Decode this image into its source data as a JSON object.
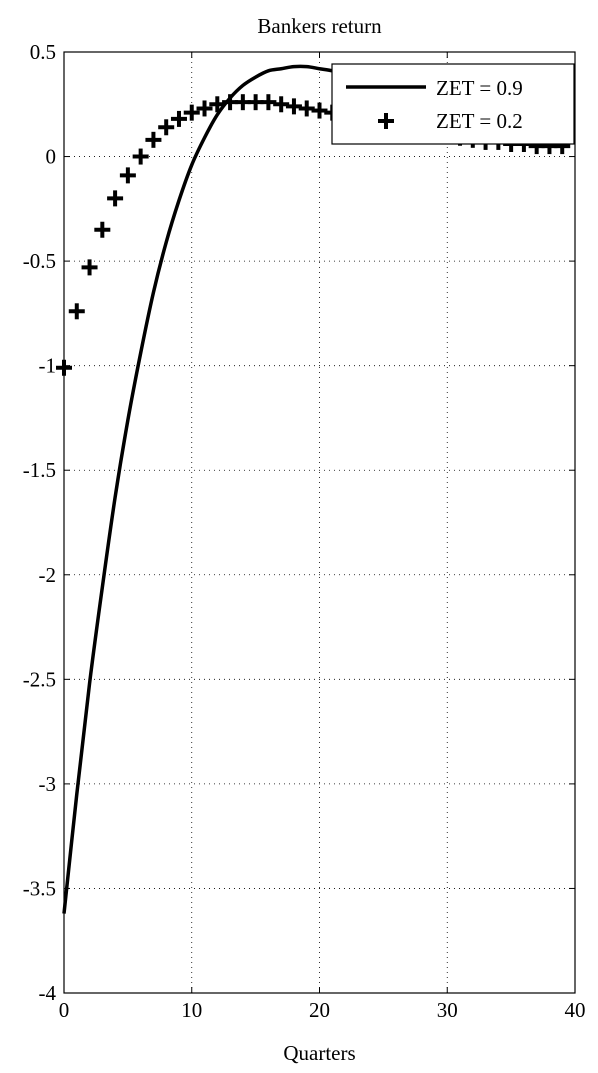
{
  "chart_data": {
    "type": "line",
    "title": "Bankers return",
    "xlabel": "Quarters",
    "ylabel": "",
    "xlim": [
      0,
      40
    ],
    "ylim": [
      -4,
      0.5
    ],
    "xticks": [
      0,
      10,
      20,
      30,
      40
    ],
    "xtick_labels": [
      "0",
      "10",
      "20",
      "30",
      "40"
    ],
    "yticks": [
      0.5,
      0,
      -0.5,
      -1,
      -1.5,
      -2,
      -2.5,
      -3,
      -3.5,
      -4
    ],
    "ytick_labels": [
      "0.5",
      "0",
      "-0.5",
      "-1",
      "-1.5",
      "-2",
      "-2.5",
      "-3",
      "-3.5",
      "-4"
    ],
    "grid": true,
    "grid_style": "dotted",
    "legend_position": "top-right",
    "series": [
      {
        "name": "ZET = 0.9",
        "style": "solid-line",
        "color": "#000000",
        "x": [
          0,
          1,
          2,
          3,
          4,
          5,
          6,
          7,
          8,
          9,
          10,
          11,
          12,
          13,
          14,
          15,
          16,
          17,
          18,
          19,
          20,
          21,
          22,
          23,
          24,
          25,
          26,
          27,
          28,
          29,
          30,
          31,
          32,
          33,
          34,
          35,
          36,
          37,
          38,
          39
        ],
        "values": [
          -3.62,
          -3.05,
          -2.52,
          -2.06,
          -1.63,
          -1.26,
          -0.94,
          -0.65,
          -0.41,
          -0.21,
          -0.04,
          0.09,
          0.2,
          0.28,
          0.34,
          0.38,
          0.41,
          0.42,
          0.43,
          0.43,
          0.42,
          0.41,
          0.39,
          0.37,
          0.35,
          0.32,
          0.3,
          0.27,
          0.25,
          0.22,
          0.2,
          0.18,
          0.16,
          0.14,
          0.12,
          0.1,
          0.09,
          0.08,
          0.07,
          0.06
        ]
      },
      {
        "name": "ZET = 0.2",
        "style": "plus-markers",
        "color": "#000000",
        "x": [
          0,
          1,
          2,
          3,
          4,
          5,
          6,
          7,
          8,
          9,
          10,
          11,
          12,
          13,
          14,
          15,
          16,
          17,
          18,
          19,
          20,
          21,
          22,
          23,
          24,
          25,
          26,
          27,
          28,
          29,
          30,
          31,
          32,
          33,
          34,
          35,
          36,
          37,
          38,
          39
        ],
        "values": [
          -1.01,
          -0.74,
          -0.53,
          -0.35,
          -0.2,
          -0.09,
          0.0,
          0.08,
          0.14,
          0.18,
          0.21,
          0.23,
          0.25,
          0.26,
          0.26,
          0.26,
          0.26,
          0.25,
          0.24,
          0.23,
          0.22,
          0.21,
          0.2,
          0.18,
          0.17,
          0.16,
          0.14,
          0.13,
          0.12,
          0.11,
          0.1,
          0.09,
          0.08,
          0.07,
          0.07,
          0.06,
          0.06,
          0.05,
          0.05,
          0.05
        ]
      }
    ]
  }
}
